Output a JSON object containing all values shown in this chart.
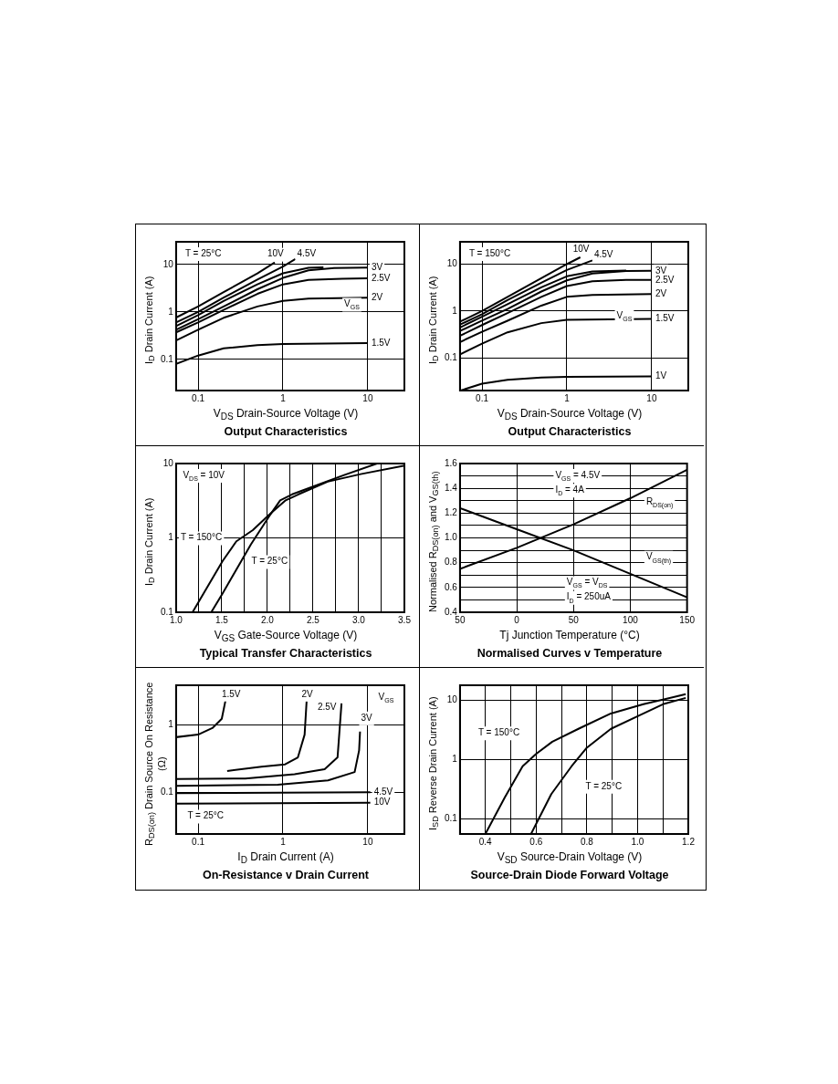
{
  "chart_data": [
    {
      "type": "line",
      "title": "Output Characteristics",
      "xlabel": "V$_{DS}$  Drain-Source Voltage (V)",
      "ylabel": "I$_{D}$ Drain Current (A)",
      "log": "xy",
      "grid": true,
      "legend": false,
      "marker": "none",
      "xlim": [
        0.055,
        27
      ],
      "ylim": [
        0.022,
        30
      ],
      "xticks": [
        0.1,
        1,
        10
      ],
      "yticks": [
        0.1,
        1,
        10
      ],
      "annotations": [
        "T = 25°C",
        "V$_{GS}$"
      ],
      "series": [
        {
          "name": "10V",
          "color": "#000000",
          "x": [
            0.055,
            0.1,
            0.2,
            0.5,
            0.8
          ],
          "values": [
            0.76,
            1.3,
            2.6,
            6.5,
            11
          ]
        },
        {
          "name": "4.5V",
          "color": "#000000",
          "x": [
            0.055,
            0.1,
            0.2,
            0.5,
            1,
            1.4
          ],
          "values": [
            0.6,
            1.0,
            2,
            4.8,
            9,
            13
          ]
        },
        {
          "color": "#000000",
          "x": [
            0.055,
            0.1,
            0.2,
            0.5,
            1,
            2,
            3
          ],
          "values": [
            0.5,
            0.85,
            1.7,
            3.8,
            6.5,
            8.5,
            8.7
          ]
        },
        {
          "name": "3V",
          "color": "#000000",
          "x": [
            0.055,
            0.1,
            0.2,
            0.5,
            1,
            2,
            4,
            10
          ],
          "values": [
            0.42,
            0.7,
            1.3,
            3,
            5.2,
            7.5,
            8.4,
            8.6
          ]
        },
        {
          "name": "2.5V",
          "color": "#000000",
          "x": [
            0.055,
            0.1,
            0.2,
            0.5,
            1,
            2,
            5,
            10
          ],
          "values": [
            0.37,
            0.6,
            1.1,
            2.4,
            3.8,
            4.7,
            5,
            5.1
          ]
        },
        {
          "name": "2V",
          "color": "#000000",
          "x": [
            0.055,
            0.1,
            0.2,
            0.5,
            1,
            2,
            10
          ],
          "values": [
            0.25,
            0.42,
            0.75,
            1.3,
            1.7,
            1.9,
            2.0
          ]
        },
        {
          "name": "1.5V",
          "color": "#000000",
          "x": [
            0.055,
            0.1,
            0.2,
            0.5,
            1,
            10
          ],
          "values": [
            0.08,
            0.12,
            0.17,
            0.2,
            0.21,
            0.22
          ]
        }
      ]
    },
    {
      "type": "line",
      "title": "Output Characteristics",
      "xlabel": "V$_{DS}$  Drain-Source Voltage (V)",
      "ylabel": "I$_{D}$ Drain Current (A)",
      "log": "xy",
      "grid": true,
      "legend": false,
      "marker": "none",
      "xlim": [
        0.055,
        27
      ],
      "ylim": [
        0.02,
        30
      ],
      "xticks": [
        0.1,
        1,
        10
      ],
      "yticks": [
        0.1,
        1,
        10
      ],
      "annotations": [
        "T = 150°C",
        "V$_{GS}$"
      ],
      "series": [
        {
          "name": "10V",
          "color": "#000000",
          "x": [
            0.056,
            0.1,
            0.2,
            0.5,
            1,
            1.44
          ],
          "values": [
            0.6,
            1,
            2,
            5,
            10,
            14
          ]
        },
        {
          "name": "4.5V",
          "color": "#000000",
          "x": [
            0.056,
            0.1,
            0.2,
            0.5,
            1,
            2
          ],
          "values": [
            0.52,
            0.85,
            1.7,
            4,
            7.5,
            12
          ]
        },
        {
          "color": "#000000",
          "x": [
            0.056,
            0.1,
            0.2,
            0.5,
            1,
            2,
            5
          ],
          "values": [
            0.45,
            0.75,
            1.4,
            3.2,
            5.5,
            7,
            7.3
          ]
        },
        {
          "name": "3V",
          "color": "#000000",
          "x": [
            0.056,
            0.1,
            0.2,
            0.5,
            1,
            2,
            5,
            10
          ],
          "values": [
            0.38,
            0.62,
            1.1,
            2.6,
            4.5,
            6.3,
            7.1,
            7.2
          ]
        },
        {
          "name": "2.5V",
          "color": "#000000",
          "x": [
            0.056,
            0.1,
            0.2,
            0.5,
            1,
            2,
            5,
            10
          ],
          "values": [
            0.3,
            0.5,
            0.9,
            2,
            3.4,
            4.3,
            4.6,
            4.6
          ]
        },
        {
          "name": "2V",
          "color": "#000000",
          "x": [
            0.056,
            0.1,
            0.2,
            0.5,
            1,
            2,
            10
          ],
          "values": [
            0.22,
            0.36,
            0.62,
            1.3,
            2,
            2.2,
            2.3
          ]
        },
        {
          "name": "1.5V",
          "color": "#000000",
          "x": [
            0.056,
            0.1,
            0.2,
            0.5,
            1,
            10
          ],
          "values": [
            0.12,
            0.2,
            0.35,
            0.55,
            0.65,
            0.68
          ]
        },
        {
          "name": "1V",
          "color": "#000000",
          "x": [
            0.056,
            0.1,
            0.2,
            0.5,
            1,
            10
          ],
          "values": [
            0.02,
            0.028,
            0.034,
            0.038,
            0.039,
            0.04
          ]
        }
      ]
    },
    {
      "type": "line",
      "title": "Typical Transfer Characteristics",
      "xlabel": "V$_{GS}$  Gate-Source Voltage (V)",
      "ylabel": "I$_{D}$ Drain Current (A)",
      "log": "y",
      "grid": true,
      "legend": false,
      "marker": "none",
      "xlim": [
        1,
        3.5
      ],
      "ylim": [
        0.1,
        10
      ],
      "xticks": [
        {
          "value": 1,
          "label": "1.0"
        },
        {
          "value": 1.25,
          "label": null
        },
        {
          "value": 1.5,
          "label": "1.5"
        },
        {
          "value": 1.75,
          "label": null
        },
        {
          "value": 2,
          "label": "2.0"
        },
        {
          "value": 2.25,
          "label": null
        },
        {
          "value": 2.5,
          "label": "2.5"
        },
        {
          "value": 2.75,
          "label": null
        },
        {
          "value": 3,
          "label": "3.0"
        },
        {
          "value": 3.25,
          "label": null
        },
        {
          "value": 3.5,
          "label": "3.5"
        }
      ],
      "yticks": [
        0.1,
        1,
        10
      ],
      "annotations": [
        "V$_{DS}$ = 10V"
      ],
      "series": [
        {
          "name": "T = 150°C",
          "color": "#000000",
          "x": [
            1.18,
            1.51,
            1.66,
            1.84,
            2.02,
            2.2,
            2.34,
            2.66,
            3.02,
            3.49
          ],
          "values": [
            0.1,
            0.49,
            0.9,
            1.27,
            2.06,
            3.2,
            3.85,
            5.7,
            7.2,
            9.3
          ]
        },
        {
          "name": "T = 25°C",
          "color": "#000000",
          "x": [
            1.385,
            1.51,
            1.82,
            2.02,
            2.14,
            2.27,
            2.48,
            2.84,
            3.2
          ],
          "values": [
            0.1,
            0.18,
            0.82,
            1.96,
            3.2,
            3.85,
            4.8,
            7,
            10
          ]
        }
      ]
    },
    {
      "type": "line",
      "title": "Normalised Curves v Temperature",
      "xlabel": "Tj  Junction Temperature (°C)",
      "ylabel": "Normalised R$_{DS(on)}$ and V$_{GS(th)}$",
      "grid": true,
      "legend": false,
      "marker": "none",
      "xlim": [
        -50,
        150
      ],
      "ylim": [
        0.4,
        1.6
      ],
      "xticks": [
        {
          "value": -50,
          "label": "50"
        },
        0,
        50,
        100,
        150
      ],
      "yticks": [
        0.4,
        {
          "value": 0.5,
          "label": null
        },
        0.6,
        {
          "value": 0.7,
          "label": null
        },
        0.8,
        {
          "value": 0.9,
          "label": null
        },
        {
          "value": 1,
          "label": "1.0"
        },
        {
          "value": 1.1,
          "label": null
        },
        1.2,
        {
          "value": 1.3,
          "label": null
        },
        1.4,
        {
          "value": 1.5,
          "label": null
        },
        1.6
      ],
      "annotations": [
        "V$_{GS}$ = 4.5V",
        "I$_{D}$ = 4A",
        "V$_{GS}$ = V$_{DS}$",
        "I$_{D}$ = 250uA"
      ],
      "series": [
        {
          "name": "R$_{DS(on)}$",
          "color": "#000000",
          "x": [
            -50,
            0,
            50,
            100,
            150
          ],
          "values": [
            0.75,
            0.92,
            1.11,
            1.32,
            1.55
          ]
        },
        {
          "name": "V$_{GS(th)}$",
          "color": "#000000",
          "x": [
            -50,
            0,
            50,
            100,
            150
          ],
          "values": [
            1.24,
            1.07,
            0.9,
            0.71,
            0.52
          ]
        }
      ]
    },
    {
      "type": "line",
      "title": "On-Resistance v Drain Current",
      "xlabel": "I$_{D}$  Drain Current (A)",
      "ylabel": "R$_{DS(on)}$  Drain Source On Resistance (Ω)",
      "log": "xy",
      "grid": true,
      "legend": false,
      "marker": "none",
      "xlim": [
        0.055,
        27
      ],
      "ylim": [
        0.024,
        3.9
      ],
      "xticks": [
        0.1,
        1,
        10
      ],
      "yticks": [
        0.1,
        1
      ],
      "annotations": [
        "V$_{GS}$",
        "T = 25°C"
      ],
      "series": [
        {
          "name": "1.5V",
          "color": "#000000",
          "x": [
            0.055,
            0.1,
            0.147,
            0.19,
            0.21
          ],
          "values": [
            0.66,
            0.72,
            0.9,
            1.24,
            2.3
          ]
        },
        {
          "name": "2V",
          "color": "#000000",
          "x": [
            0.22,
            0.56,
            1.06,
            1.5,
            1.8,
            1.9
          ],
          "values": [
            0.207,
            0.24,
            0.26,
            0.33,
            0.72,
            2.26
          ]
        },
        {
          "name": "2.5V",
          "color": "#000000",
          "x": [
            0.055,
            0.36,
            1.37,
            3.1,
            4.4,
            4.9
          ],
          "values": [
            0.158,
            0.16,
            0.185,
            0.22,
            0.33,
            2.1
          ]
        },
        {
          "name": "3V",
          "color": "#000000",
          "x": [
            0.055,
            0.87,
            3.4,
            7,
            7.9,
            8.1
          ],
          "values": [
            0.125,
            0.13,
            0.15,
            0.2,
            0.42,
            0.8
          ]
        },
        {
          "name": "4.5V",
          "color": "#000000",
          "x": [
            0.055,
            10.7
          ],
          "values": [
            0.097,
            0.1
          ]
        },
        {
          "name": "10V",
          "color": "#000000",
          "x": [
            0.055,
            10.7
          ],
          "values": [
            0.068,
            0.07
          ]
        }
      ]
    },
    {
      "type": "line",
      "title": "Source-Drain Diode Forward Voltage",
      "xlabel": "V$_{SD}$  Source-Drain Voltage (V)",
      "ylabel": "I$_{SD}$ Reverse Drain Current (A)",
      "log": "y",
      "grid": true,
      "legend": false,
      "marker": "none",
      "xlim": [
        0.3,
        1.2
      ],
      "ylim": [
        0.055,
        18
      ],
      "xticks": [
        0.4,
        {
          "value": 0.5,
          "label": null
        },
        0.6,
        {
          "value": 0.7,
          "label": null
        },
        0.8,
        {
          "value": 0.9,
          "label": null
        },
        {
          "value": 1,
          "label": "1.0"
        },
        {
          "value": 1.1,
          "label": null
        },
        1.2
      ],
      "yticks": [
        0.1,
        1,
        10
      ],
      "series": [
        {
          "name": "T = 150°C",
          "color": "#000000",
          "x": [
            0.4,
            0.477,
            0.547,
            0.6,
            0.664,
            0.767,
            0.895,
            1.023,
            1.19
          ],
          "values": [
            0.055,
            0.23,
            0.77,
            1.24,
            2.0,
            3.3,
            6,
            8.6,
            12.7
          ]
        },
        {
          "name": "T = 25°C",
          "color": "#000000",
          "x": [
            0.58,
            0.66,
            0.74,
            0.8,
            0.895,
            0.997,
            1.1,
            1.19
          ],
          "values": [
            0.055,
            0.26,
            0.77,
            1.58,
            3.3,
            5.3,
            8.6,
            11
          ]
        }
      ]
    }
  ]
}
